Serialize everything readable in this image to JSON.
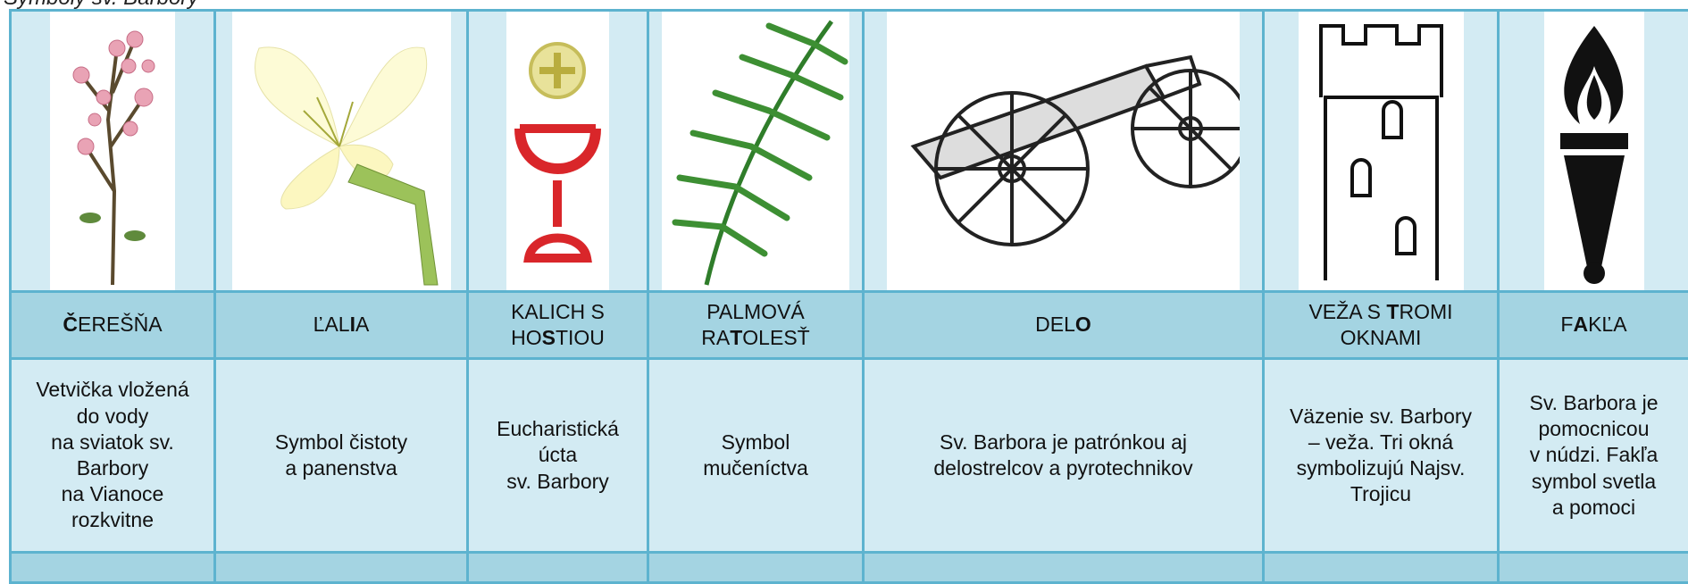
{
  "caption": "Symboly sv. Barbory",
  "columns": [
    {
      "header": [
        "Č",
        "EREŠŇA"
      ],
      "description": "Vetvička vložená\ndo vody\nna sviatok sv.\nBarbory\nna Vianoce\nrozkvitne"
    },
    {
      "header": [
        "ĽAL",
        "I",
        "A"
      ],
      "description": "Symbol čistoty\na panenstva"
    },
    {
      "header": [
        "KALICH S\nHO",
        "S",
        "TIOU"
      ],
      "description": "Eucharistická\núcta\nsv. Barbory"
    },
    {
      "header": [
        "PALMOVÁ\nRA",
        "T",
        "OLESŤ"
      ],
      "description": "Symbol\nmučeníctva"
    },
    {
      "header": [
        "DEL",
        "O"
      ],
      "description": "Sv. Barbora je patrónkou aj\ndelostrelcov a pyrotechnikov"
    },
    {
      "header": [
        "VEŽA S ",
        "T",
        "ROMI\nOKNAMI"
      ],
      "description": "Väzenie sv. Barbory\n– veža. Tri okná\nsymbolizujú Najsv.\nTrojicu"
    },
    {
      "header": [
        "F",
        "A",
        "KĽA"
      ],
      "description": "Sv. Barbora je\npomocnicou\nv núdzi. Fakľa\nsymbol svetla\na pomoci"
    }
  ]
}
